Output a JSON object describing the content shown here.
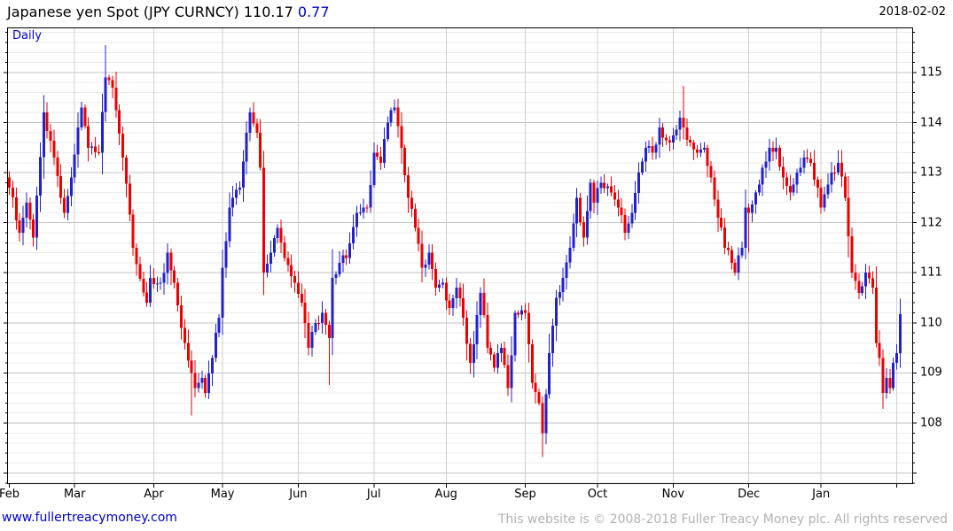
{
  "header": {
    "instrument": "Japanese yen Spot (JPY CURNCY)",
    "last": "110.17",
    "change": "0.77",
    "date": "2018-02-02"
  },
  "footer": {
    "site_link": "www.fullertreacymoney.com",
    "copyright": "This website is © 2008-2018 Fuller Treacy Money plc. All rights reserved"
  },
  "chart_data": {
    "type": "candlestick",
    "title": "Japanese yen Spot (JPY CURNCY)",
    "frequency_label": "Daily",
    "last_price": 110.17,
    "change": 0.77,
    "as_of_date": "2018-02-02",
    "ylim": [
      106.78,
      115.9
    ],
    "y_ticks": [
      108,
      109,
      110,
      111,
      112,
      113,
      114,
      115
    ],
    "y_minor_step": 0.2,
    "grid": true,
    "legend_position": "none",
    "n_days": 260,
    "x_months": [
      {
        "label": "Feb",
        "start_day": 0
      },
      {
        "label": "Mar",
        "start_day": 19
      },
      {
        "label": "Apr",
        "start_day": 42
      },
      {
        "label": "May",
        "start_day": 62
      },
      {
        "label": "Jun",
        "start_day": 84
      },
      {
        "label": "Jul",
        "start_day": 106
      },
      {
        "label": "Aug",
        "start_day": 127
      },
      {
        "label": "Sep",
        "start_day": 150
      },
      {
        "label": "Oct",
        "start_day": 171
      },
      {
        "label": "Nov",
        "start_day": 193
      },
      {
        "label": "Dec",
        "start_day": 215
      },
      {
        "label": "Jan",
        "start_day": 236
      },
      {
        "label": "",
        "start_day": 258
      }
    ],
    "first_open": 112.9,
    "close_anchors": [
      [
        0,
        112.7
      ],
      [
        3,
        111.8
      ],
      [
        5,
        112.4
      ],
      [
        7,
        111.7
      ],
      [
        10,
        114.2
      ],
      [
        13,
        113.3
      ],
      [
        16,
        112.2
      ],
      [
        18,
        112.9
      ],
      [
        20,
        113.9
      ],
      [
        21,
        114.3
      ],
      [
        23,
        113.5
      ],
      [
        26,
        113.4
      ],
      [
        28,
        114.9
      ],
      [
        30,
        114.7
      ],
      [
        33,
        113.3
      ],
      [
        36,
        111.5
      ],
      [
        40,
        110.4
      ],
      [
        41,
        110.9
      ],
      [
        44,
        110.8
      ],
      [
        46,
        111.4
      ],
      [
        48,
        110.8
      ],
      [
        51,
        109.6
      ],
      [
        53,
        109.0
      ],
      [
        54,
        108.7
      ],
      [
        56,
        108.9
      ],
      [
        57,
        108.6
      ],
      [
        59,
        109.3
      ],
      [
        61,
        110.1
      ],
      [
        62,
        111.1
      ],
      [
        64,
        112.3
      ],
      [
        67,
        112.7
      ],
      [
        69,
        113.8
      ],
      [
        70,
        114.2
      ],
      [
        72,
        113.8
      ],
      [
        73,
        113.1
      ],
      [
        74,
        111.0
      ],
      [
        76,
        111.4
      ],
      [
        78,
        111.9
      ],
      [
        80,
        111.3
      ],
      [
        83,
        110.8
      ],
      [
        85,
        110.4
      ],
      [
        87,
        109.5
      ],
      [
        89,
        110.0
      ],
      [
        91,
        110.2
      ],
      [
        93,
        109.7
      ],
      [
        94,
        110.9
      ],
      [
        96,
        111.2
      ],
      [
        98,
        111.3
      ],
      [
        101,
        112.2
      ],
      [
        104,
        112.3
      ],
      [
        106,
        113.4
      ],
      [
        108,
        113.2
      ],
      [
        110,
        114.0
      ],
      [
        112,
        114.3
      ],
      [
        114,
        113.5
      ],
      [
        116,
        112.5
      ],
      [
        118,
        111.9
      ],
      [
        120,
        111.1
      ],
      [
        122,
        111.4
      ],
      [
        124,
        110.7
      ],
      [
        126,
        110.8
      ],
      [
        128,
        110.3
      ],
      [
        130,
        110.7
      ],
      [
        132,
        110.1
      ],
      [
        134,
        109.2
      ],
      [
        137,
        110.6
      ],
      [
        139,
        109.5
      ],
      [
        141,
        109.1
      ],
      [
        143,
        109.5
      ],
      [
        145,
        108.7
      ],
      [
        147,
        110.2
      ],
      [
        149,
        110.25
      ],
      [
        150,
        110.2
      ],
      [
        152,
        108.8
      ],
      [
        154,
        108.4
      ],
      [
        155,
        107.8
      ],
      [
        157,
        109.4
      ],
      [
        159,
        110.5
      ],
      [
        161,
        110.9
      ],
      [
        163,
        111.5
      ],
      [
        165,
        112.5
      ],
      [
        167,
        111.7
      ],
      [
        169,
        112.8
      ],
      [
        170,
        112.4
      ],
      [
        172,
        112.8
      ],
      [
        175,
        112.6
      ],
      [
        177,
        112.3
      ],
      [
        179,
        111.8
      ],
      [
        181,
        112.2
      ],
      [
        183,
        113.0
      ],
      [
        185,
        113.5
      ],
      [
        187,
        113.4
      ],
      [
        189,
        113.9
      ],
      [
        190,
        113.7
      ],
      [
        192,
        113.6
      ],
      [
        195,
        114.1
      ],
      [
        196,
        113.9
      ],
      [
        198,
        113.6
      ],
      [
        200,
        113.4
      ],
      [
        202,
        113.5
      ],
      [
        204,
        112.9
      ],
      [
        206,
        112.1
      ],
      [
        208,
        111.5
      ],
      [
        210,
        111.2
      ],
      [
        211,
        111.0
      ],
      [
        213,
        111.5
      ],
      [
        214,
        112.3
      ],
      [
        215,
        112.2
      ],
      [
        217,
        112.6
      ],
      [
        219,
        113.1
      ],
      [
        221,
        113.5
      ],
      [
        223,
        113.5
      ],
      [
        225,
        112.9
      ],
      [
        227,
        112.6
      ],
      [
        229,
        113.0
      ],
      [
        231,
        113.3
      ],
      [
        233,
        113.2
      ],
      [
        235,
        112.7
      ],
      [
        236,
        112.3
      ],
      [
        239,
        113.0
      ],
      [
        241,
        113.2
      ],
      [
        243,
        112.5
      ],
      [
        245,
        111.0
      ],
      [
        247,
        110.6
      ],
      [
        249,
        111.0
      ],
      [
        251,
        110.7
      ],
      [
        252,
        109.6
      ],
      [
        253,
        109.3
      ],
      [
        254,
        108.6
      ],
      [
        255,
        108.9
      ],
      [
        256,
        108.7
      ],
      [
        257,
        109.2
      ],
      [
        258,
        109.4
      ],
      [
        259,
        110.17
      ]
    ],
    "wick_overrides": {
      "10": {
        "high": 114.55
      },
      "28": {
        "high": 115.55
      },
      "53": {
        "low": 108.15
      },
      "74": {
        "low": 110.55
      },
      "93": {
        "low": 108.76
      },
      "155": {
        "low": 107.32
      },
      "179": {
        "low": 111.65
      },
      "196": {
        "high": 114.73
      },
      "215": {
        "low": 111.4
      },
      "241": {
        "high": 113.45
      },
      "254": {
        "low": 108.28
      },
      "259": {
        "high": 110.48
      }
    },
    "colors": {
      "up": "#2222cc",
      "down": "#ee0000",
      "grid_minor": "#ebebeb",
      "grid_major": "#c3c3c3",
      "grid_month": "#cfcfcf",
      "axis": "#000000",
      "title_text": "#000000",
      "change_text": "#0000cc",
      "frequency_text": "#0000cc",
      "footer_link": "#0000cc",
      "footer_copy": "#b2b2b2"
    }
  }
}
